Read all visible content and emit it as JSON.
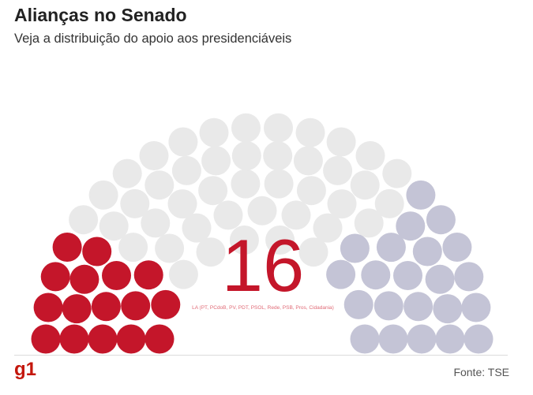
{
  "header": {
    "title": "Alianças no Senado",
    "subtitle": "Veja a distribuição do apoio aos presidenciáveis"
  },
  "highlight": {
    "value": "16",
    "parties": "LA (PT, PCdoB, PV, PDT, PSOL, Rede, PSB, Pros, Cidadania)"
  },
  "footer": {
    "logo": "g1",
    "source": "Fonte: TSE"
  },
  "colors": {
    "red": "#c4162a",
    "gray": "#e9e9e9",
    "lavender": "#c4c4d6"
  },
  "chart_data": {
    "type": "parliament",
    "total_seats": 81,
    "groups": [
      {
        "color": "#c4162a",
        "seats": 16
      },
      {
        "color": "#e9e9e9",
        "seats": 43
      },
      {
        "color": "#c4c4d6",
        "seats": 22
      }
    ]
  }
}
